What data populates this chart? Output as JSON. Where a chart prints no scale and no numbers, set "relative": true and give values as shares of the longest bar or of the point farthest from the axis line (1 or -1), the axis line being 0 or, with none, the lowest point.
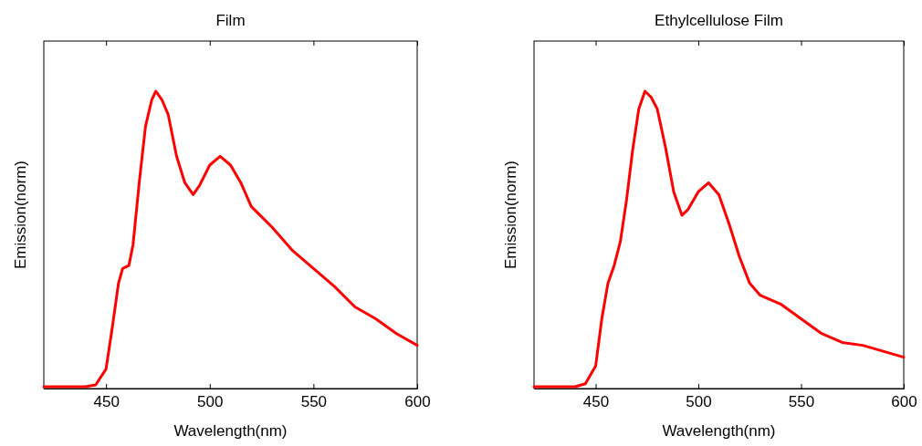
{
  "chart_data": [
    {
      "type": "line",
      "title": "Film",
      "xlabel": "Wavelength(nm)",
      "ylabel": "Emission(norm)",
      "relative": true,
      "xlim": [
        420,
        600
      ],
      "xticks": [
        450,
        500,
        550,
        600
      ],
      "series": [
        {
          "color": "#ff0000",
          "x": [
            420,
            440,
            445,
            450,
            453,
            456,
            458,
            461,
            463,
            466,
            469,
            472,
            474,
            477,
            480,
            484,
            488,
            492,
            495,
            500,
            505,
            510,
            515,
            520,
            530,
            540,
            550,
            560,
            570,
            580,
            590,
            600
          ],
          "values": [
            0,
            0,
            0.006,
            0.06,
            0.2,
            0.35,
            0.4,
            0.41,
            0.48,
            0.69,
            0.88,
            0.97,
            1,
            0.97,
            0.92,
            0.78,
            0.69,
            0.65,
            0.68,
            0.75,
            0.78,
            0.75,
            0.69,
            0.61,
            0.54,
            0.46,
            0.4,
            0.34,
            0.27,
            0.23,
            0.18,
            0.14
          ]
        }
      ]
    },
    {
      "type": "line",
      "title": "Ethylcellulose Film",
      "xlabel": "Wavelength(nm)",
      "ylabel": "Emission(norm)",
      "relative": true,
      "xlim": [
        420,
        600
      ],
      "xticks": [
        450,
        500,
        550,
        600
      ],
      "series": [
        {
          "color": "#ff0000",
          "x": [
            420,
            440,
            445,
            450,
            453,
            456,
            459,
            462,
            465,
            468,
            471,
            474,
            477,
            480,
            484,
            488,
            492,
            495,
            500,
            505,
            510,
            515,
            520,
            525,
            530,
            540,
            550,
            560,
            570,
            580,
            590,
            600
          ],
          "values": [
            0,
            0,
            0.01,
            0.07,
            0.23,
            0.35,
            0.41,
            0.49,
            0.63,
            0.8,
            0.94,
            1,
            0.98,
            0.94,
            0.81,
            0.66,
            0.58,
            0.6,
            0.66,
            0.69,
            0.65,
            0.55,
            0.44,
            0.35,
            0.31,
            0.28,
            0.23,
            0.18,
            0.15,
            0.14,
            0.12,
            0.1
          ]
        }
      ]
    }
  ]
}
